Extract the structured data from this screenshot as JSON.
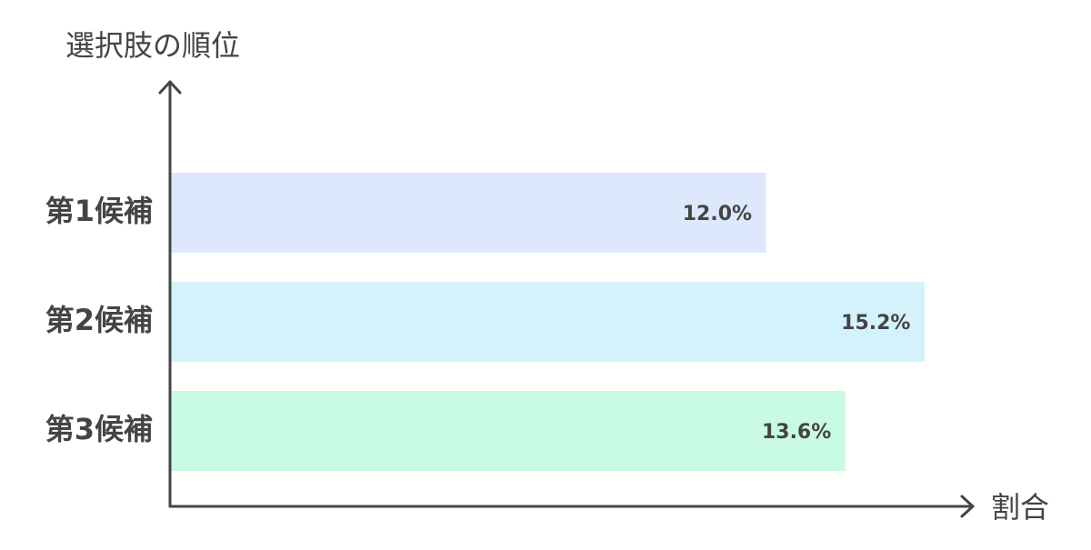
{
  "chart_data": {
    "type": "bar",
    "orientation": "horizontal",
    "y_label": "選択肢の順位",
    "x_label": "割合",
    "categories": [
      "第1候補",
      "第2候補",
      "第3候補"
    ],
    "values": [
      12.0,
      15.2,
      13.6
    ],
    "value_labels": [
      "12.0%",
      "15.2%",
      "13.6%"
    ],
    "colors": [
      "#dde8fc",
      "#d4f2fc",
      "#c9fae3"
    ],
    "xlim": [
      0,
      16.2
    ]
  }
}
